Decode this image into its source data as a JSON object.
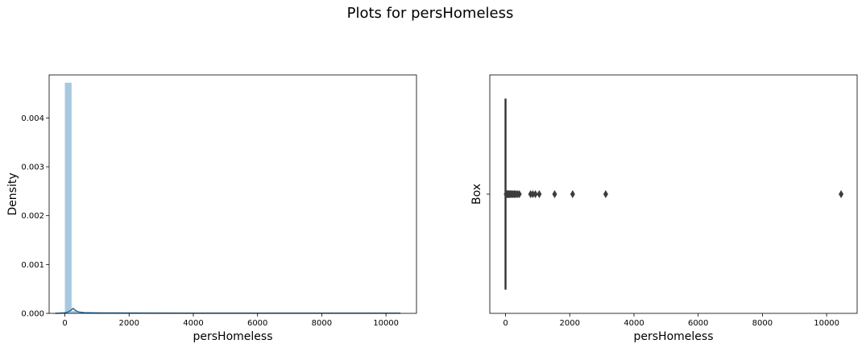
{
  "title": "Plots for persHomeless",
  "chart_data": [
    {
      "type": "histogram",
      "xlabel": "persHomeless",
      "ylabel": "Density",
      "xlim": [
        -490,
        10950
      ],
      "ylim": [
        0,
        0.00488
      ],
      "xticks": [
        0,
        2000,
        4000,
        6000,
        8000,
        10000
      ],
      "yticks": [
        0.0,
        0.001,
        0.002,
        0.003,
        0.004
      ],
      "ytick_labels": [
        "0.000",
        "0.001",
        "0.002",
        "0.003",
        "0.004"
      ],
      "bin_width": 209,
      "bins": [
        {
          "x0": 0,
          "x1": 209,
          "density": 0.00472
        },
        {
          "x0": 209,
          "x1": 418,
          "density": 5e-05
        },
        {
          "x0": 418,
          "x1": 627,
          "density": 1.5e-05
        },
        {
          "x0": 627,
          "x1": 836,
          "density": 1e-05
        },
        {
          "x0": 836,
          "x1": 1045,
          "density": 1e-05
        },
        {
          "x0": 1045,
          "x1": 1254,
          "density": 5e-06
        },
        {
          "x0": 1463,
          "x1": 1672,
          "density": 5e-06
        },
        {
          "x0": 2090,
          "x1": 2299,
          "density": 5e-06
        },
        {
          "x0": 3135,
          "x1": 3344,
          "density": 5e-06
        },
        {
          "x0": 10241,
          "x1": 10450,
          "density": 5e-06
        }
      ],
      "kde": [
        [
          -300,
          0
        ],
        [
          0,
          1e-05
        ],
        [
          100,
          3e-05
        ],
        [
          180,
          6e-05
        ],
        [
          260,
          0.0001
        ],
        [
          330,
          6e-05
        ],
        [
          420,
          3e-05
        ],
        [
          600,
          1.5e-05
        ],
        [
          900,
          1e-05
        ],
        [
          1500,
          8e-06
        ],
        [
          2500,
          6e-06
        ],
        [
          4000,
          4e-06
        ],
        [
          6000,
          4e-06
        ],
        [
          8000,
          3e-06
        ],
        [
          10000,
          3e-06
        ],
        [
          10450,
          3e-06
        ]
      ],
      "colors": {
        "bars": "#a6c8e0",
        "kde": "#2b6a9b"
      }
    },
    {
      "type": "box",
      "xlabel": "persHomeless",
      "ylabel": "Box",
      "xlim": [
        -490,
        10950
      ],
      "xticks": [
        0,
        2000,
        4000,
        6000,
        8000,
        10000
      ],
      "box": {
        "whisker_low": 0,
        "q1": 0,
        "median": 0,
        "q3": 0,
        "whisker_high": 0
      },
      "outliers": [
        20,
        40,
        60,
        80,
        100,
        120,
        150,
        180,
        210,
        240,
        270,
        300,
        340,
        380,
        430,
        780,
        850,
        930,
        1050,
        1530,
        2090,
        3120,
        10450
      ],
      "colors": {
        "box": "#333333",
        "fliers": "#3d3d3d"
      }
    }
  ]
}
